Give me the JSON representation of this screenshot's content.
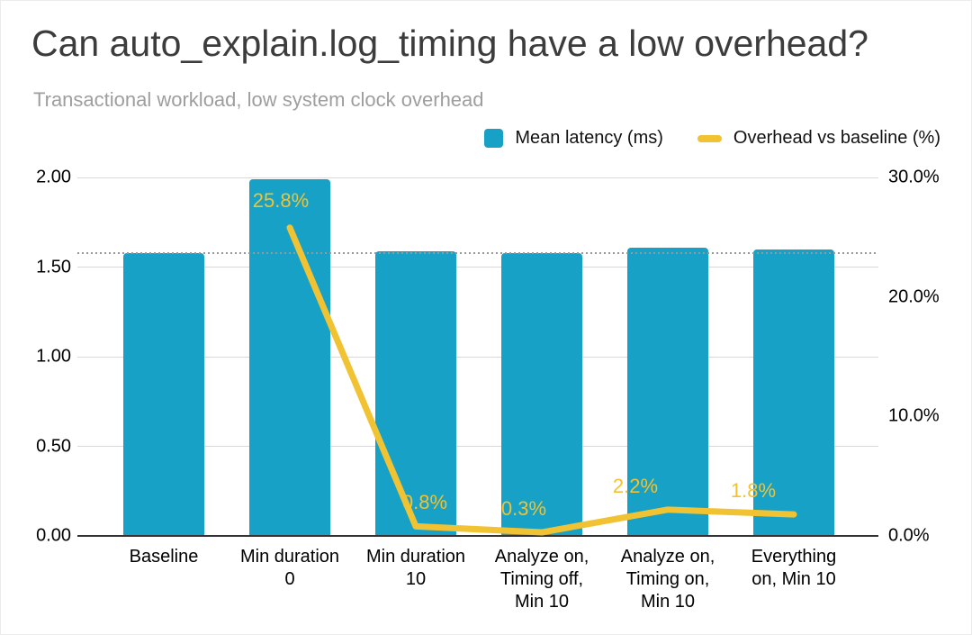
{
  "title": "Can auto_explain.log_timing have a low overhead?",
  "subtitle": "Transactional workload, low system clock overhead",
  "legend": {
    "items": [
      {
        "label": "Mean latency (ms)",
        "swatch": "bar-swatch",
        "color": "#17a1c6"
      },
      {
        "label": "Overhead vs baseline (%)",
        "swatch": "line-swatch",
        "color": "#f1c232"
      }
    ]
  },
  "colors": {
    "bar": "#17a1c6",
    "line": "#f1c232",
    "title": "#3c3c3c",
    "subtitle": "#9e9e9e",
    "gridline": "#d9d9d9",
    "axis_line": "#333333",
    "reference_line": "#999999"
  },
  "chart_data": {
    "type": "bar",
    "subtype": "combo-bar-line-dual-axis",
    "title": "Can auto_explain.log_timing have a low overhead?",
    "subtitle": "Transactional workload, low system clock overhead",
    "categories": [
      "Baseline",
      "Min duration 0",
      "Min duration 10",
      "Analyze on, Timing off, Min 10",
      "Analyze on, Timing on, Min 10",
      "Everything on, Min 10"
    ],
    "xtick_display": [
      "Baseline",
      "Min duration\n0",
      "Min duration\n10",
      "Analyze on,\nTiming off,\nMin 10",
      "Analyze on,\nTiming on,\nMin 10",
      "Everything\non, Min 10"
    ],
    "series": [
      {
        "name": "Mean latency (ms)",
        "type": "bar",
        "axis": "left",
        "color": "#17a1c6",
        "values": [
          1.58,
          1.99,
          1.59,
          1.58,
          1.61,
          1.6
        ]
      },
      {
        "name": "Overhead vs baseline (%)",
        "type": "line",
        "axis": "right",
        "color": "#f1c232",
        "values": [
          null,
          25.8,
          0.8,
          0.3,
          2.2,
          1.8
        ],
        "point_labels": [
          "",
          "25.8%",
          "0.8%",
          "0.3%",
          "2.2%",
          "1.8%"
        ]
      }
    ],
    "left_axis": {
      "min": 0,
      "max": 2,
      "ticks": [
        "0.00",
        "0.50",
        "1.00",
        "1.50",
        "2.00"
      ]
    },
    "right_axis": {
      "min": 0,
      "max": 30,
      "ticks": [
        "0.0%",
        "10.0%",
        "20.0%",
        "30.0%"
      ]
    },
    "reference_line": {
      "value": 1.58,
      "axis": "left",
      "style": "dotted"
    },
    "grid": true,
    "legend_position": "top-right"
  }
}
